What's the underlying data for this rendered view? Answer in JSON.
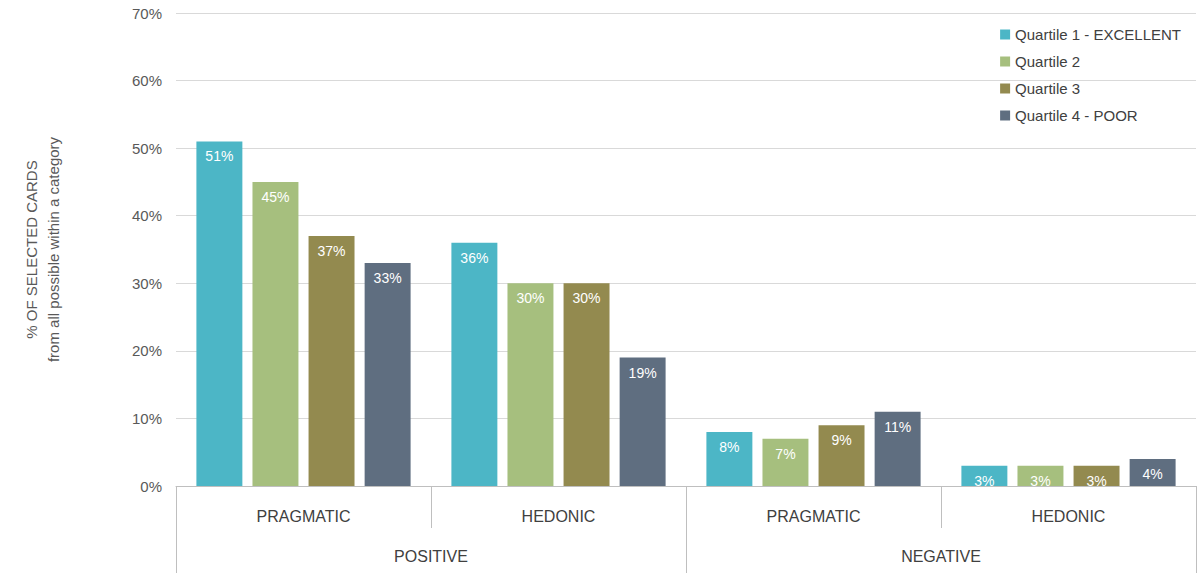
{
  "chart_data": {
    "type": "bar",
    "ylabel": "% OF SELECTED CARDS\nfrom all possible within a category",
    "categories": [
      "PRAGMATIC",
      "HEDONIC",
      "PRAGMATIC",
      "HEDONIC"
    ],
    "category_groups": [
      "POSITIVE",
      "POSITIVE",
      "NEGATIVE",
      "NEGATIVE"
    ],
    "ylim": [
      0,
      70
    ],
    "yticks": [
      {
        "value": 0,
        "label": "0%"
      },
      {
        "value": 10,
        "label": "10%"
      },
      {
        "value": 20,
        "label": "20%"
      },
      {
        "value": 30,
        "label": "30%"
      },
      {
        "value": 40,
        "label": "40%"
      },
      {
        "value": 50,
        "label": "50%"
      },
      {
        "value": 60,
        "label": "60%"
      },
      {
        "value": 70,
        "label": "70%"
      }
    ],
    "grid": true,
    "legend": "upper right",
    "data_labels": true,
    "series": [
      {
        "name": "Quartile 1 - EXCELLENT",
        "color": "#4cb6c6",
        "values": [
          51,
          36,
          8,
          3
        ],
        "value_labels": [
          "51%",
          "36%",
          "8%",
          "3%"
        ]
      },
      {
        "name": "Quartile 2",
        "color": "#a6bf7e",
        "values": [
          45,
          30,
          7,
          3
        ],
        "value_labels": [
          "45%",
          "30%",
          "7%",
          "3%"
        ]
      },
      {
        "name": "Quartile 3",
        "color": "#938a4f",
        "values": [
          37,
          30,
          9,
          3
        ],
        "value_labels": [
          "37%",
          "30%",
          "9%",
          "3%"
        ]
      },
      {
        "name": "Quartile 4 - POOR",
        "color": "#5f6e80",
        "values": [
          33,
          19,
          11,
          4
        ],
        "value_labels": [
          "33%",
          "19%",
          "11%",
          "4%"
        ]
      }
    ]
  }
}
